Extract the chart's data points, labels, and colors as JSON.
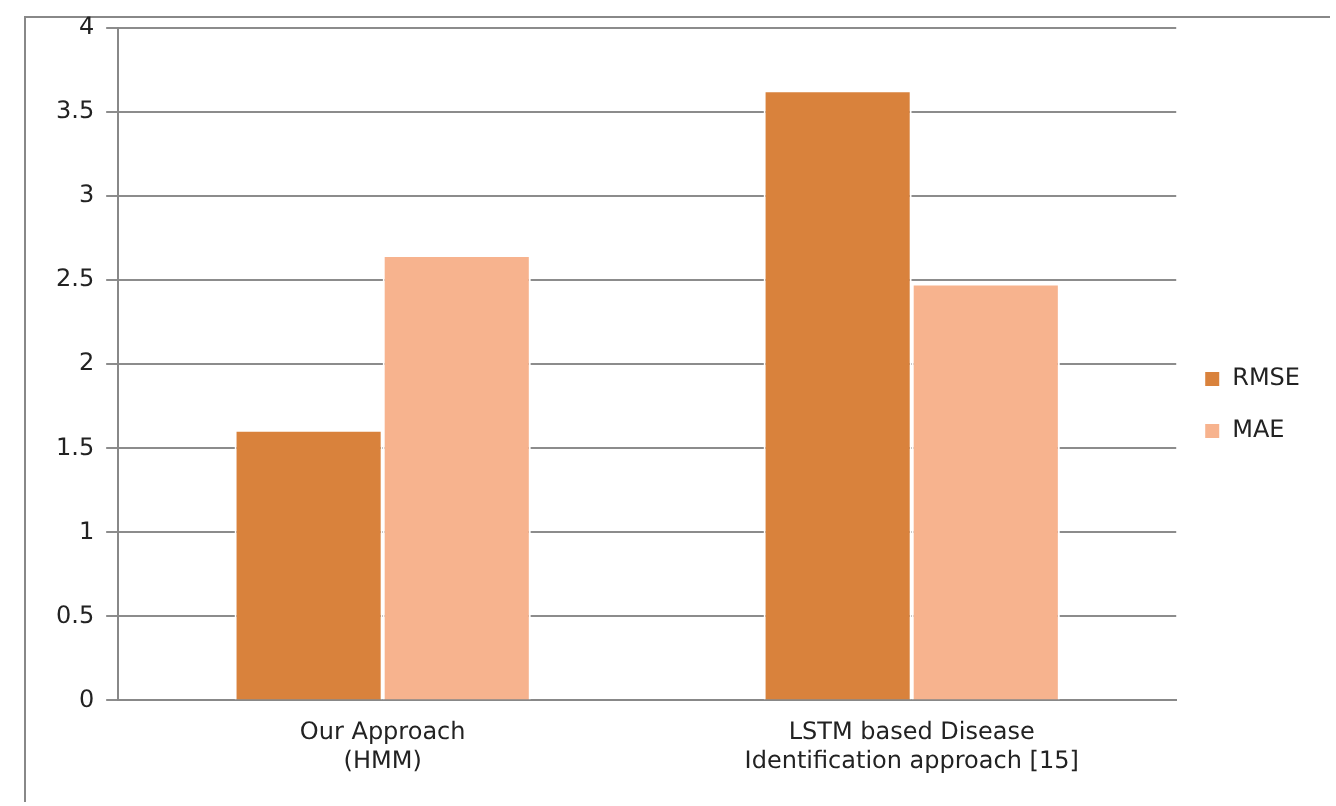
{
  "chart_data": {
    "type": "bar",
    "categories": [
      "Our Approach\n(HMM)",
      "LSTM based Disease\nIdentification approach [15]"
    ],
    "series": [
      {
        "name": "RMSE",
        "color": "#d9823c",
        "values": [
          1.61,
          3.63
        ]
      },
      {
        "name": "MAE",
        "color": "#f7b38e",
        "values": [
          2.65,
          2.48
        ]
      }
    ],
    "ylim": [
      0,
      4
    ],
    "yticks": [
      0,
      0.5,
      1,
      1.5,
      2,
      2.5,
      3,
      3.5,
      4
    ],
    "grid": "y",
    "legend": "right"
  }
}
